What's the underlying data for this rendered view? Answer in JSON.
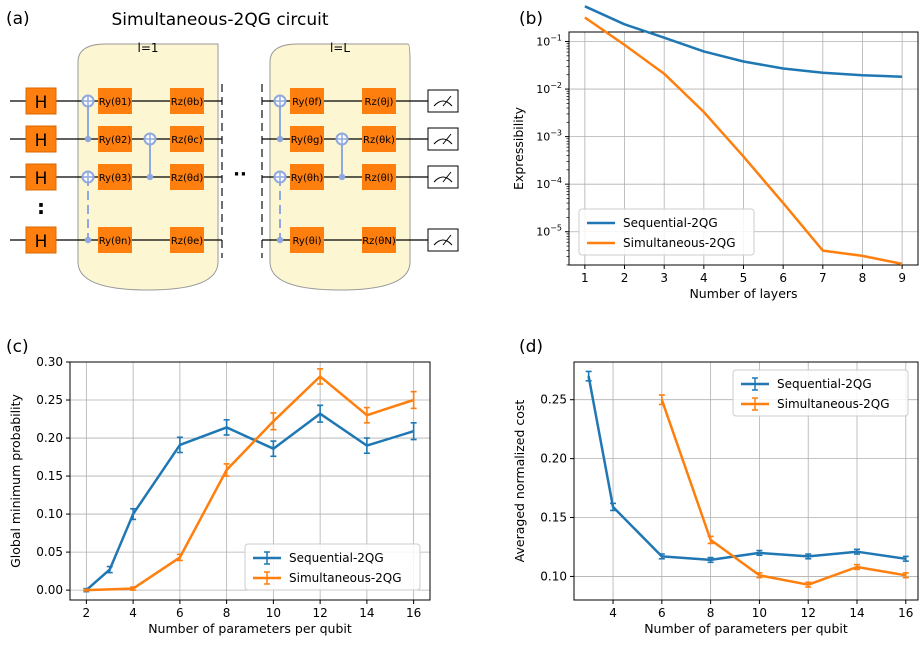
{
  "panel_labels": [
    "(a)",
    "(b)",
    "(c)",
    "(d)"
  ],
  "circuit": {
    "title": "Simultaneous-2QG circuit",
    "layer_first": "l=1",
    "layer_last": "l=L",
    "hadamard": "H",
    "vdots": ":",
    "hdots": "··",
    "first_block": {
      "ry": [
        "Ry(θ1)",
        "Ry(θ2)",
        "Ry(θ3)",
        "Ry(θn)"
      ],
      "rz": [
        "Rz(θb)",
        "Rz(θc)",
        "Rz(θd)",
        "Rz(θe)"
      ]
    },
    "last_block": {
      "ry": [
        "Ry(θf)",
        "Ry(θg)",
        "Ry(θh)",
        "Ry(θi)"
      ],
      "rz": [
        "Rz(θj)",
        "Rz(θk)",
        "Rz(θl)",
        "Rz(θN)"
      ]
    },
    "meter_icon": "measurement-meter-icon"
  },
  "colors": {
    "sequential": "#1f77b4",
    "simultaneous": "#ff7f0e",
    "gate_fill": "#ff7f0e",
    "block_fill": "#fdf6d2",
    "cnot": "#8fa8e0"
  },
  "chart_data": [
    {
      "panel": "(b)",
      "type": "line",
      "xlabel": "Number of layers",
      "ylabel": "Expressibility",
      "yscale": "log",
      "x": [
        1,
        2,
        3,
        4,
        5,
        6,
        7,
        8,
        9
      ],
      "xlim": [
        0.6,
        9.4
      ],
      "ylim_exp": [
        -5.7,
        -0.8
      ],
      "ytick_exp": [
        -5,
        -4,
        -3,
        -2,
        -1
      ],
      "ytick_labels": [
        "10−5",
        "10−4",
        "10−3",
        "10−2",
        "10−1"
      ],
      "grid": true,
      "legend": "lower-left",
      "series": [
        {
          "name": "Sequential-2QG",
          "values": [
            0.55,
            0.23,
            0.12,
            0.062,
            0.038,
            0.027,
            0.022,
            0.0195,
            0.0182
          ]
        },
        {
          "name": "Simultaneous-2QG",
          "values": [
            0.32,
            0.085,
            0.021,
            0.0033,
            0.00038,
            4e-05,
            4e-06,
            3.1e-06,
            2.1e-06
          ]
        }
      ]
    },
    {
      "panel": "(c)",
      "type": "line",
      "xlabel": "Number of parameters per qubit",
      "ylabel": "Global minimum probability",
      "xlim": [
        1.3,
        16.7
      ],
      "ylim": [
        -0.013,
        0.3
      ],
      "xticks": [
        2,
        4,
        6,
        8,
        10,
        12,
        14,
        16
      ],
      "yticks": [
        0.0,
        0.05,
        0.1,
        0.15,
        0.2,
        0.25,
        0.3
      ],
      "ytick_labels": [
        "0.00",
        "0.05",
        "0.10",
        "0.15",
        "0.20",
        "0.25",
        "0.30"
      ],
      "grid": true,
      "legend": "lower-right",
      "error_bars": true,
      "series": [
        {
          "name": "Sequential-2QG",
          "x": [
            2,
            3,
            4,
            6,
            8,
            10,
            12,
            14,
            16
          ],
          "values": [
            0.0,
            0.027,
            0.1,
            0.191,
            0.214,
            0.186,
            0.232,
            0.19,
            0.209
          ],
          "errors": [
            0.002,
            0.004,
            0.007,
            0.01,
            0.01,
            0.01,
            0.011,
            0.01,
            0.011
          ]
        },
        {
          "name": "Simultaneous-2QG",
          "x": [
            2,
            4,
            6,
            8,
            10,
            12,
            14,
            16
          ],
          "values": [
            0.0,
            0.002,
            0.043,
            0.158,
            0.222,
            0.281,
            0.23,
            0.25
          ],
          "errors": [
            0.001,
            0.002,
            0.004,
            0.008,
            0.011,
            0.01,
            0.01,
            0.011
          ]
        }
      ]
    },
    {
      "panel": "(d)",
      "type": "line",
      "xlabel": "Number of parameters per qubit",
      "ylabel": "Averaged normalized cost",
      "xlim": [
        2.4,
        16.5
      ],
      "ylim": [
        0.08,
        0.282
      ],
      "xticks": [
        4,
        6,
        8,
        10,
        12,
        14,
        16
      ],
      "yticks": [
        0.1,
        0.15,
        0.2,
        0.25
      ],
      "ytick_labels": [
        "0.10",
        "0.15",
        "0.20",
        "0.25"
      ],
      "grid": true,
      "legend": "upper-right",
      "error_bars": true,
      "series": [
        {
          "name": "Sequential-2QG",
          "x": [
            3,
            4,
            6,
            8,
            10,
            12,
            14,
            16
          ],
          "values": [
            0.27,
            0.159,
            0.117,
            0.114,
            0.12,
            0.117,
            0.121,
            0.115
          ],
          "errors": [
            0.004,
            0.003,
            0.002,
            0.002,
            0.002,
            0.002,
            0.002,
            0.002
          ]
        },
        {
          "name": "Simultaneous-2QG",
          "x": [
            6,
            8,
            10,
            12,
            14,
            16
          ],
          "values": [
            0.25,
            0.131,
            0.101,
            0.093,
            0.108,
            0.101
          ],
          "errors": [
            0.004,
            0.003,
            0.002,
            0.002,
            0.002,
            0.002
          ]
        }
      ]
    }
  ]
}
